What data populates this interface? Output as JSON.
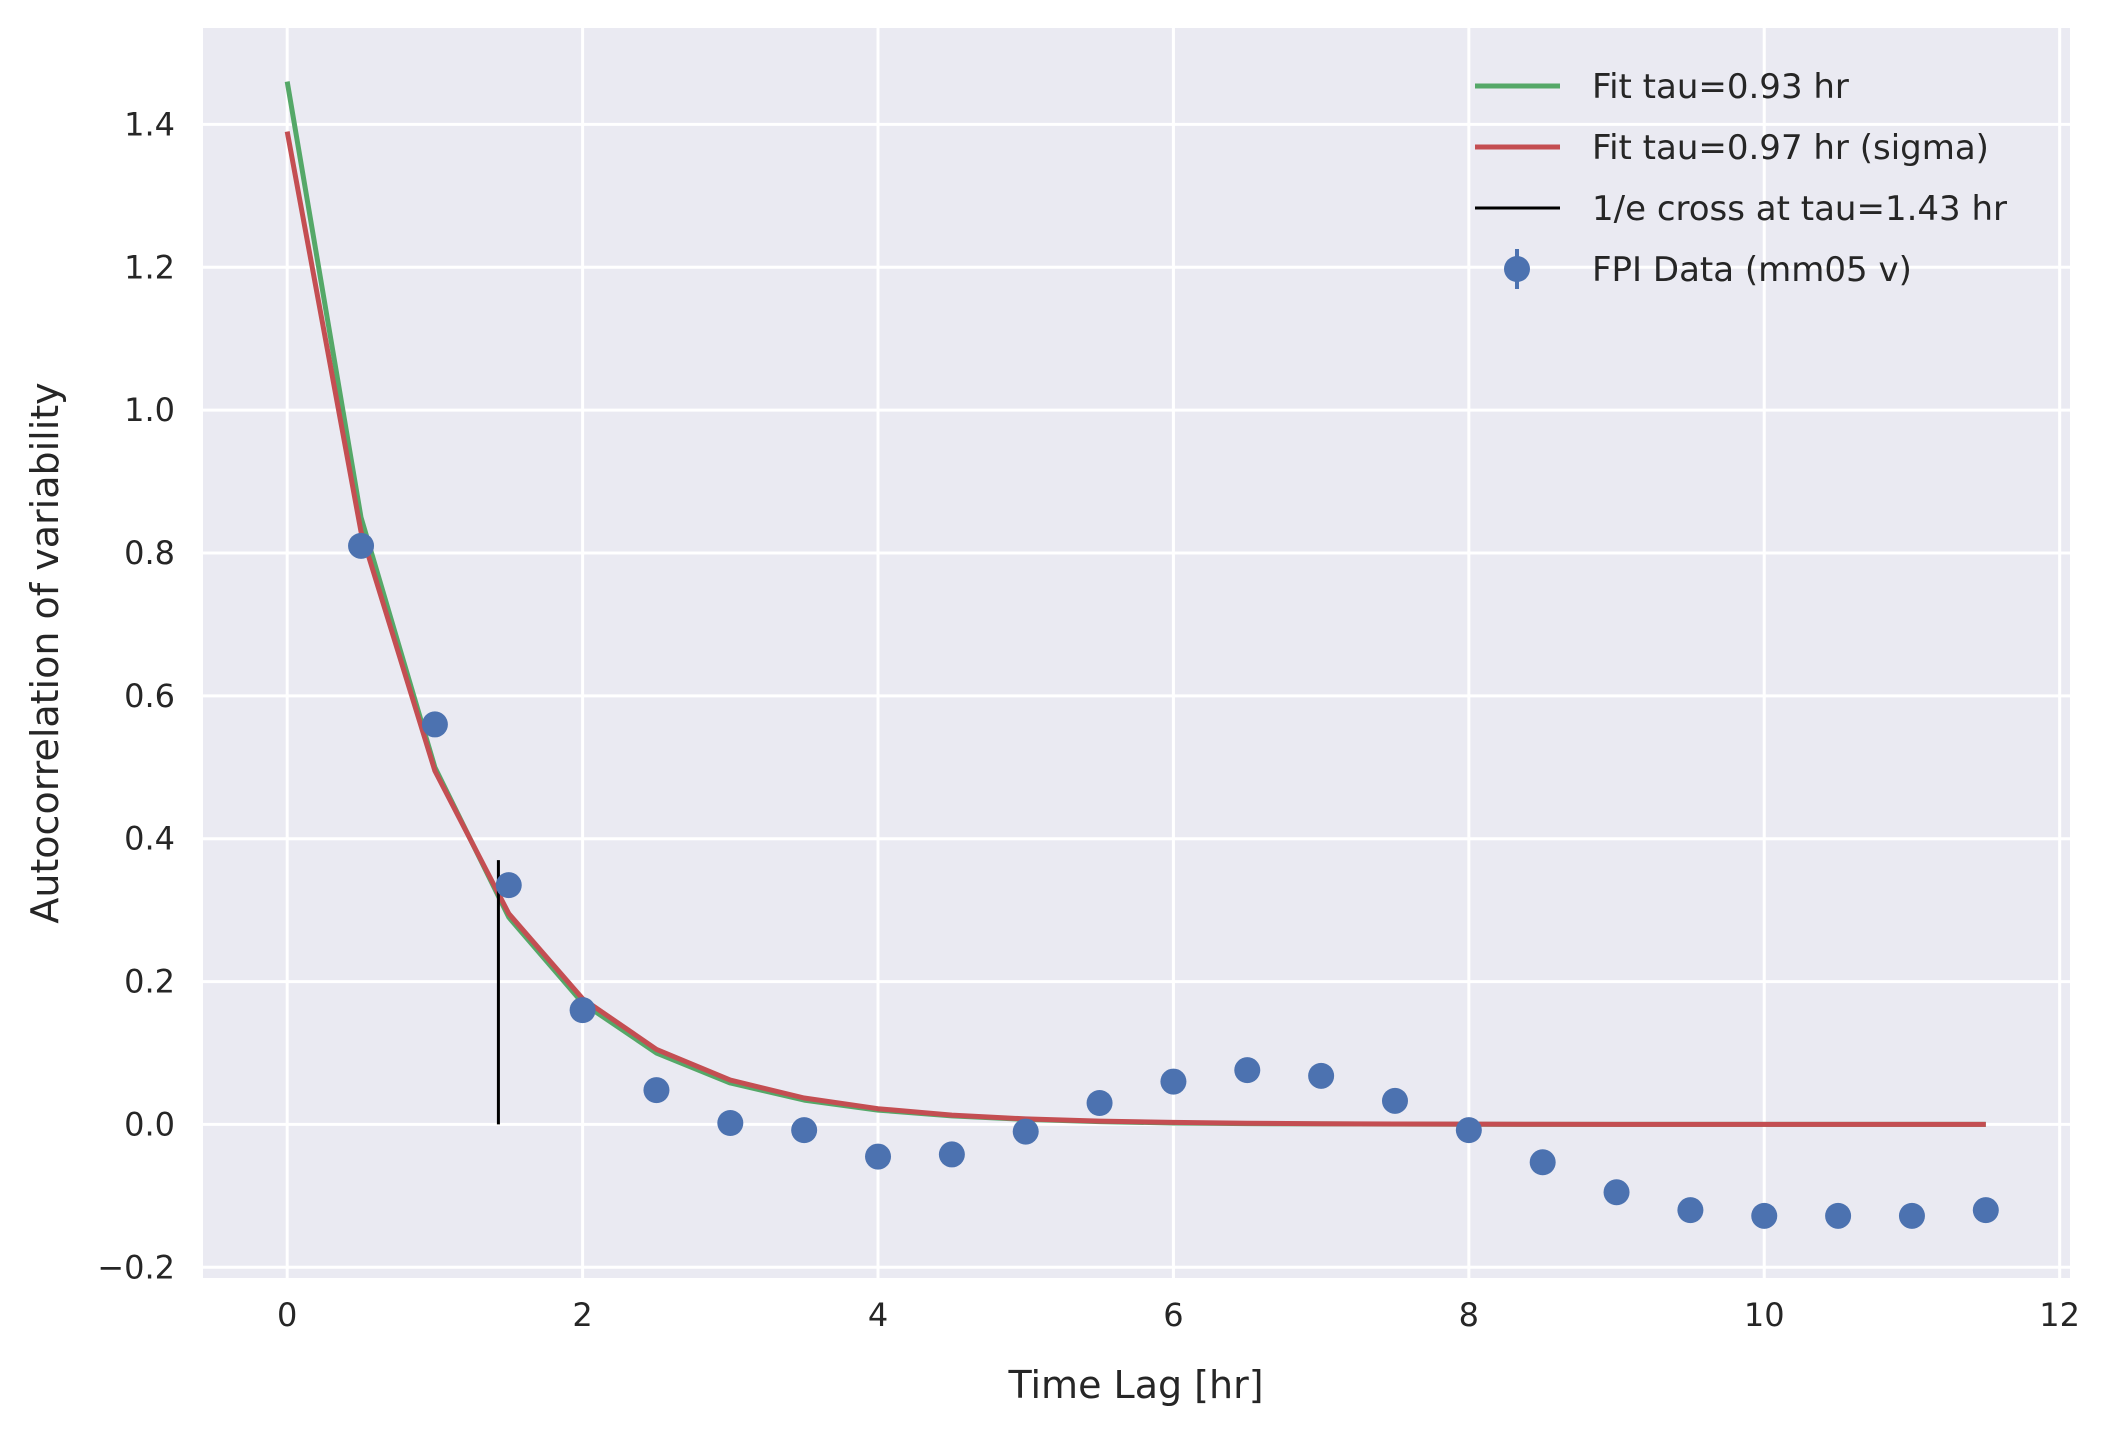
{
  "chart_data": {
    "type": "line",
    "title": "",
    "xlabel": "Time Lag [hr]",
    "ylabel": "Autocorrelation of variability",
    "xlim": [
      -0.57,
      12.07
    ],
    "ylim": [
      -0.215,
      1.535
    ],
    "xticks": [
      0,
      2,
      4,
      6,
      8,
      10,
      12
    ],
    "yticks": [
      -0.2,
      0.0,
      0.2,
      0.4,
      0.6,
      0.8,
      1.0,
      1.2,
      1.4
    ],
    "xtick_labels": [
      "0",
      "2",
      "4",
      "6",
      "8",
      "10",
      "12"
    ],
    "ytick_labels": [
      "−0.2",
      "0.0",
      "0.2",
      "0.4",
      "0.6",
      "0.8",
      "1.0",
      "1.2",
      "1.4"
    ],
    "grid": true,
    "background": "#EAEAF2",
    "legend_position": "top-right",
    "series": [
      {
        "name": "Fit tau=0.93 hr",
        "kind": "line",
        "color": "#55A868",
        "x": [
          0,
          0.5,
          1,
          1.5,
          2,
          2.5,
          3,
          3.5,
          4,
          4.5,
          5,
          5.5,
          6,
          6.5,
          7,
          7.5,
          8,
          8.5,
          9,
          9.5,
          10,
          10.5,
          11,
          11.5
        ],
        "y": [
          1.46,
          0.85,
          0.5,
          0.29,
          0.17,
          0.1,
          0.058,
          0.034,
          0.02,
          0.012,
          0.007,
          0.004,
          0.002,
          0.0012,
          0.0007,
          0.0004,
          0.0002,
          0.0001,
          0.0001,
          0.0,
          0.0,
          0.0,
          0.0,
          0.0
        ]
      },
      {
        "name": "Fit tau=0.97 hr (sigma)",
        "kind": "line",
        "color": "#C44E52",
        "x": [
          0,
          0.5,
          1,
          1.5,
          2,
          2.5,
          3,
          3.5,
          4,
          4.5,
          5,
          5.5,
          6,
          6.5,
          7,
          7.5,
          8,
          8.5,
          9,
          9.5,
          10,
          10.5,
          11,
          11.5
        ],
        "y": [
          1.39,
          0.83,
          0.495,
          0.295,
          0.176,
          0.105,
          0.062,
          0.037,
          0.022,
          0.013,
          0.0078,
          0.0047,
          0.0028,
          0.0016,
          0.001,
          0.0006,
          0.0004,
          0.0002,
          0.0001,
          0.0001,
          0.0,
          0.0,
          0.0,
          0.0
        ]
      },
      {
        "name": "1/e cross at tau=1.43 hr",
        "kind": "vline",
        "color": "#000000",
        "x": 1.43,
        "y_range": [
          0.0,
          0.37
        ]
      },
      {
        "name": "FPI Data (mm05 v)",
        "kind": "errorbar",
        "color": "#4C72B0",
        "x": [
          0.5,
          1,
          1.5,
          2,
          2.5,
          3,
          3.5,
          4,
          4.5,
          5,
          5.5,
          6,
          6.5,
          7,
          7.5,
          8,
          8.5,
          9,
          9.5,
          10,
          10.5,
          11,
          11.5
        ],
        "y": [
          0.81,
          0.56,
          0.335,
          0.16,
          0.048,
          0.002,
          -0.008,
          -0.045,
          -0.042,
          -0.01,
          0.03,
          0.06,
          0.076,
          0.068,
          0.033,
          -0.008,
          -0.053,
          -0.095,
          -0.12,
          -0.128,
          -0.128,
          -0.128,
          -0.12
        ]
      }
    ]
  }
}
